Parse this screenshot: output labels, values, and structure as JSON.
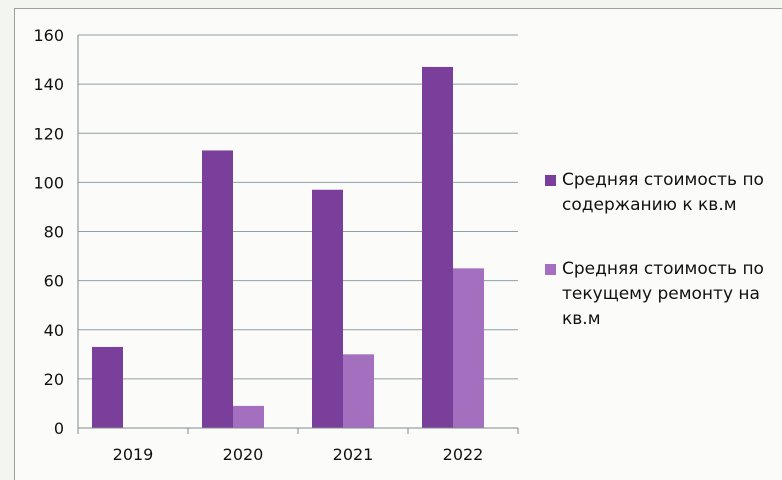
{
  "chart_data": {
    "type": "bar",
    "categories": [
      "2019",
      "2020",
      "2021",
      "2022"
    ],
    "series": [
      {
        "name": "Средняя стоимость по содержанию к кв.м",
        "values": [
          33,
          113,
          97,
          147
        ],
        "color": "#7a3e9b"
      },
      {
        "name": "Средняя стоимость по текущему ремонту на кв.м",
        "values": [
          0,
          9,
          30,
          65
        ],
        "color": "#a46fbf"
      }
    ],
    "ylim": [
      0,
      160
    ],
    "yticks": [
      "0",
      "20",
      "40",
      "60",
      "80",
      "100",
      "120",
      "140",
      "160"
    ],
    "grid": true,
    "legend_position": "right"
  }
}
